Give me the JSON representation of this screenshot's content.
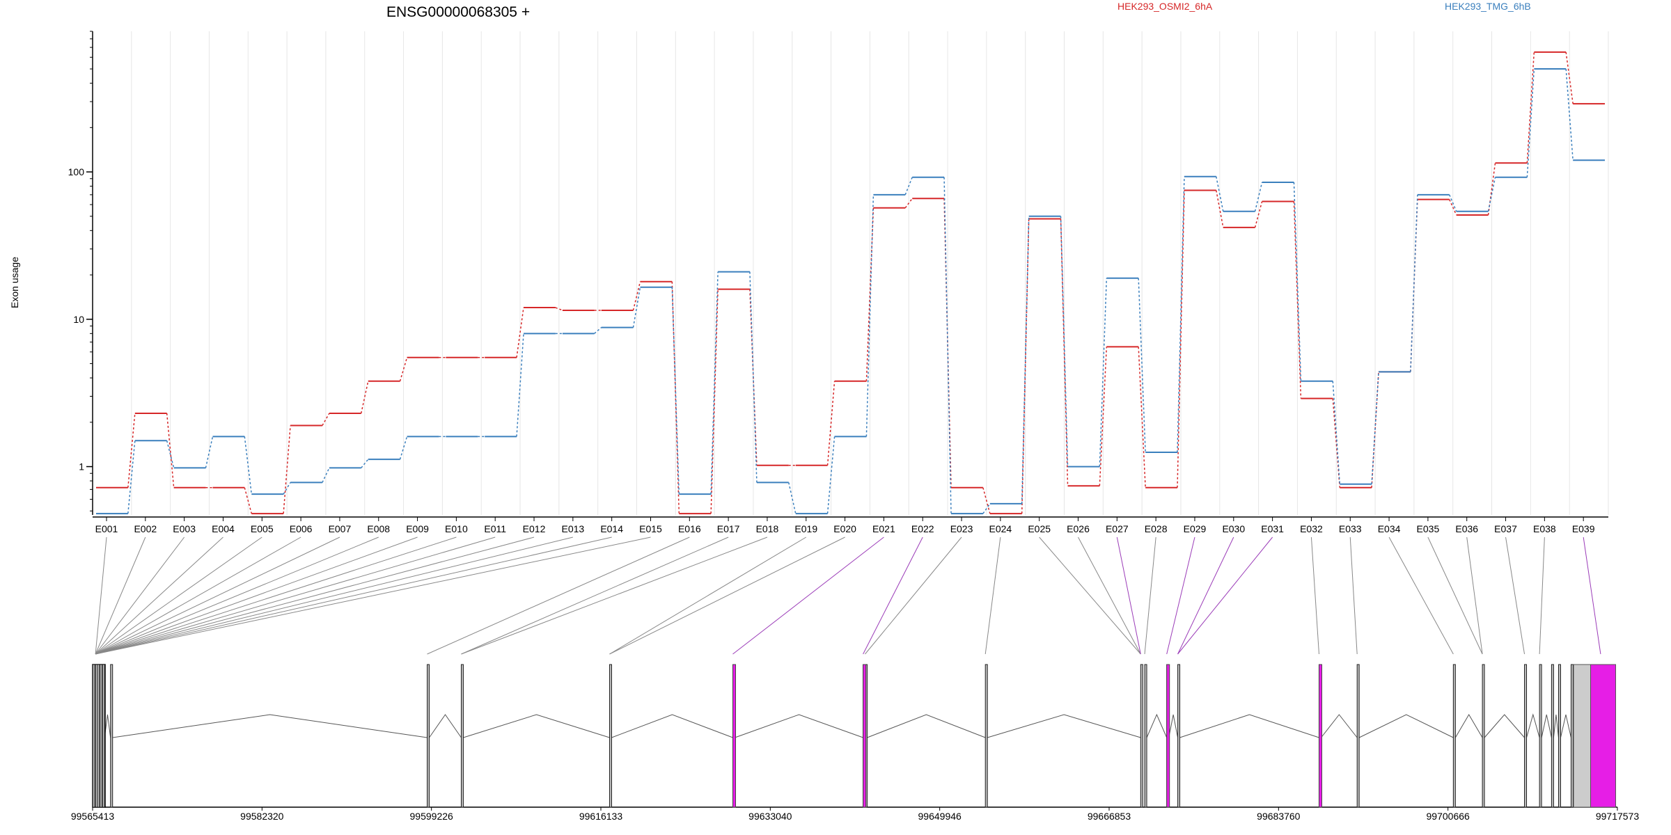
{
  "chart_data": {
    "type": "line",
    "title": "ENSG00000068305 +",
    "ylabel": "Exon usage",
    "y_scale": "log",
    "ylim": [
      0.47,
      900
    ],
    "y_ticks": [
      1,
      10,
      100
    ],
    "y_tick_labels": [
      "1",
      "10",
      "100"
    ],
    "categories": [
      "E001",
      "E002",
      "E003",
      "E004",
      "E005",
      "E006",
      "E007",
      "E008",
      "E009",
      "E010",
      "E011",
      "E012",
      "E013",
      "E014",
      "E015",
      "E016",
      "E017",
      "E018",
      "E019",
      "E020",
      "E021",
      "E022",
      "E023",
      "E024",
      "E025",
      "E026",
      "E027",
      "E028",
      "E029",
      "E030",
      "E031",
      "E032",
      "E033",
      "E034",
      "E035",
      "E036",
      "E037",
      "E038",
      "E039"
    ],
    "series": [
      {
        "name": "HEK293_OSMI2_6hA",
        "color": "#d62728",
        "values": [
          0.72,
          2.3,
          0.72,
          0.72,
          0.48,
          1.9,
          2.3,
          3.8,
          5.5,
          5.5,
          5.5,
          12,
          11.5,
          11.5,
          18,
          0.48,
          16,
          1.02,
          1.02,
          3.8,
          57,
          66,
          0.72,
          0.48,
          48,
          0.74,
          6.5,
          0.72,
          75,
          42,
          63,
          2.9,
          0.72,
          4.4,
          65,
          51,
          115,
          650,
          290
        ]
      },
      {
        "name": "HEK293_TMG_6hB",
        "color": "#3a7fbd",
        "values": [
          0.48,
          1.5,
          0.98,
          1.6,
          0.65,
          0.78,
          0.98,
          1.12,
          1.6,
          1.6,
          1.6,
          8,
          8,
          8.8,
          16.5,
          0.65,
          21,
          0.78,
          0.48,
          1.6,
          70,
          92,
          0.48,
          0.56,
          50,
          1.0,
          19,
          1.25,
          93,
          54,
          85,
          3.8,
          0.76,
          4.4,
          70,
          54,
          92,
          500,
          120
        ]
      }
    ],
    "legend_position": "top",
    "grid": "vertical",
    "gene_model": {
      "coordinate_labels": [
        "99565413",
        "99582320",
        "99599226",
        "99616133",
        "99633040",
        "99649946",
        "99666853",
        "99683760",
        "99700666",
        "99717573"
      ],
      "highlight_color": "#e61ee6",
      "highlighted_exons": [
        "E021",
        "E022",
        "E027",
        "E029",
        "E030",
        "E031",
        "E039"
      ]
    }
  }
}
